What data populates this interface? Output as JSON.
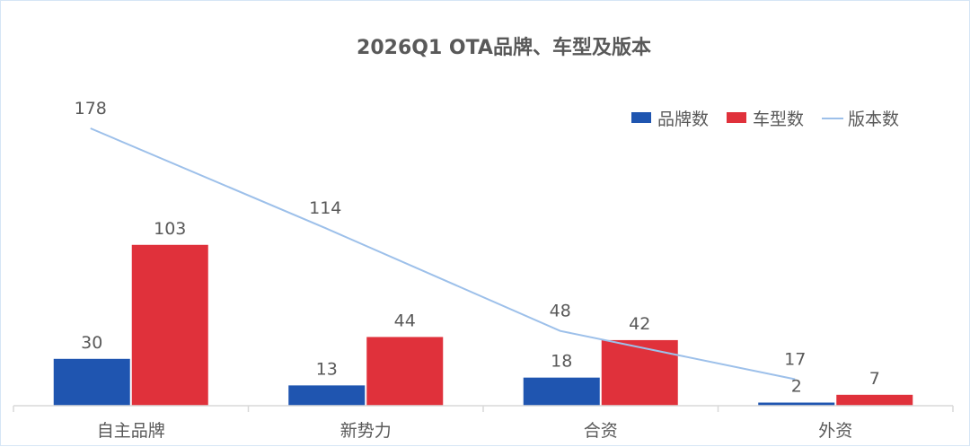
{
  "chart_data": {
    "type": "bar",
    "title": "2026Q1 OTA品牌、车型及版本",
    "categories": [
      "自主品牌",
      "新势力",
      "合资",
      "外资"
    ],
    "series": [
      {
        "name": "品牌数",
        "type": "bar",
        "color": "#1f55b0",
        "values": [
          30,
          13,
          18,
          2
        ]
      },
      {
        "name": "车型数",
        "type": "bar",
        "color": "#e0313b",
        "values": [
          103,
          44,
          42,
          7
        ]
      },
      {
        "name": "版本数",
        "type": "line",
        "color": "#9dc0ea",
        "values": [
          178,
          114,
          48,
          17
        ]
      }
    ],
    "xlabel": "",
    "ylabel": "",
    "ylim": [
      0,
      178
    ],
    "grid": false,
    "legend": "top-right",
    "data_labels": true
  }
}
